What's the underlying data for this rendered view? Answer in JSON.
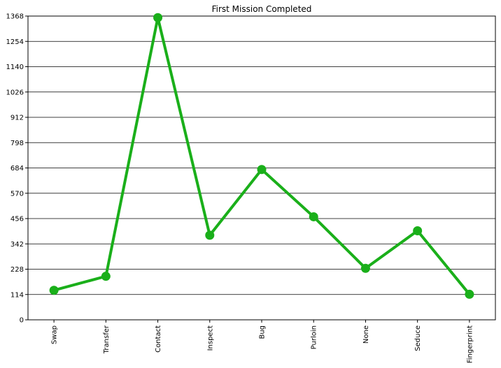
{
  "chart_data": {
    "type": "line",
    "title": "First Mission Completed",
    "xlabel": "",
    "ylabel": "",
    "categories": [
      "Swap",
      "Transfer",
      "Contact",
      "Inspect",
      "Bug",
      "Purloin",
      "None",
      "Seduce",
      "Fingerprint"
    ],
    "series": [
      {
        "values": [
          133,
          196,
          1361,
          381,
          677,
          464,
          232,
          401,
          115
        ]
      }
    ],
    "ylim": [
      0,
      1368
    ],
    "yticks": [
      0,
      114,
      228,
      342,
      456,
      570,
      684,
      798,
      912,
      1026,
      1140,
      1254,
      1368
    ],
    "grid": "horizontal",
    "colors": {
      "line": "#1aaf1a",
      "grid": "#000000",
      "axis": "#000000"
    }
  }
}
